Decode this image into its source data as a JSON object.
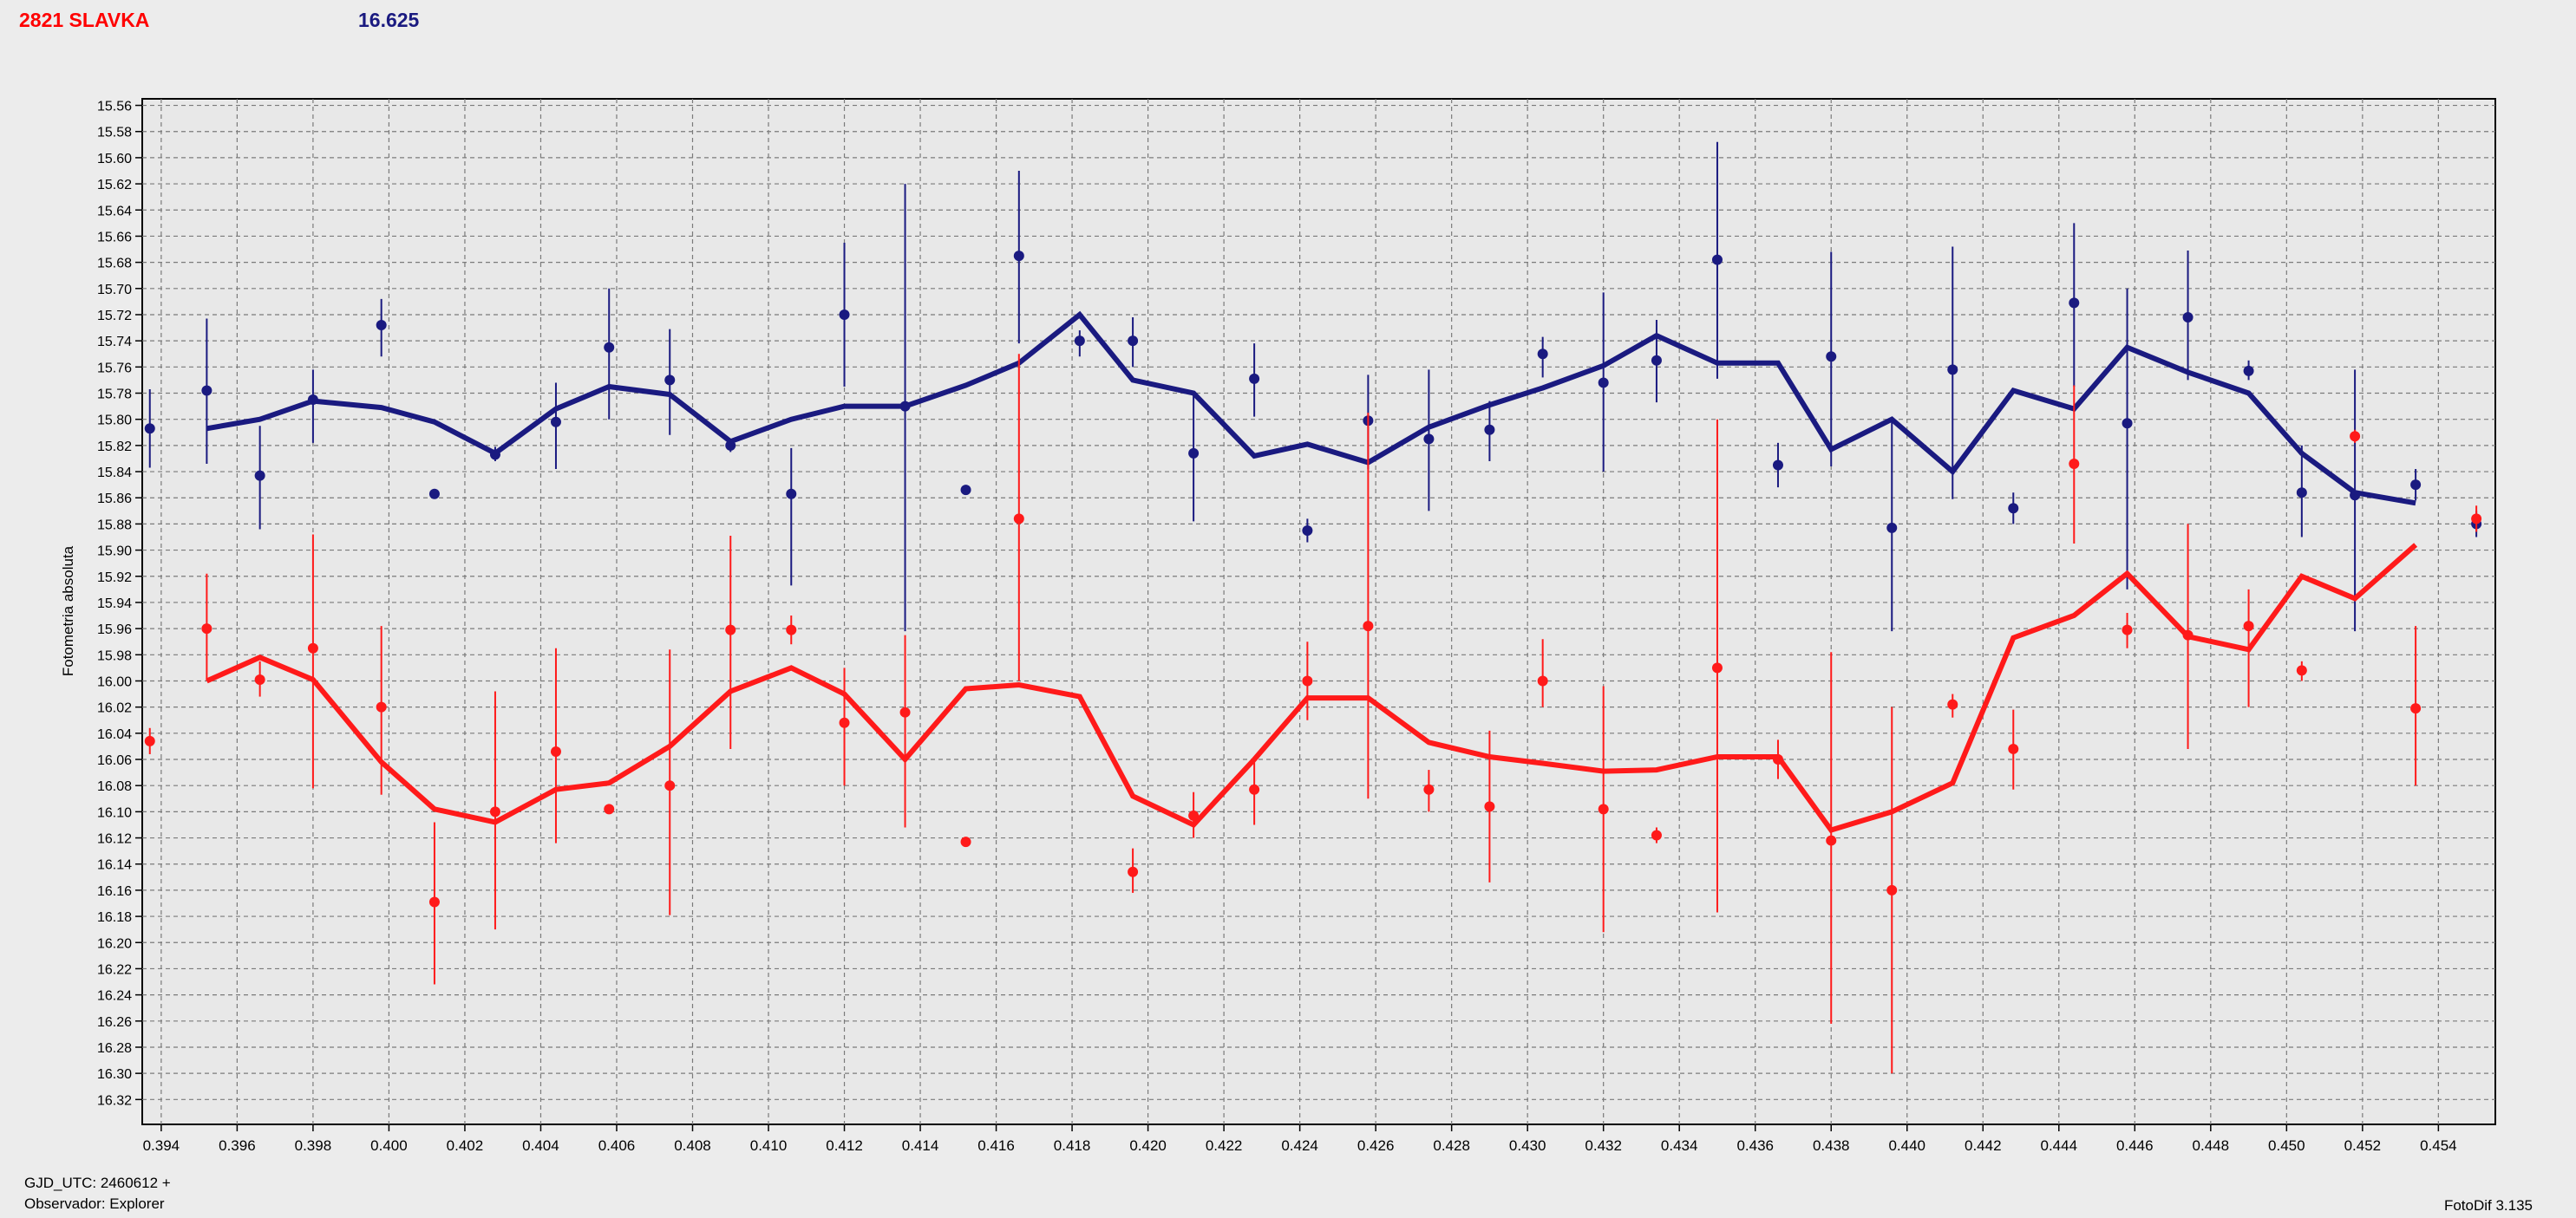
{
  "header": {
    "title": "2821 SLAVKA",
    "value": "16.625"
  },
  "footer": {
    "gjd": "GJD_UTC: 2460612 +",
    "observer": "Observador: Explorer",
    "version": "FotoDif 3.135"
  },
  "colors": {
    "blue": "#1a1a80",
    "red": "#ff1a1a",
    "plot_bg": "#e8e8e8",
    "grid": "#808080"
  },
  "chart_data": {
    "type": "scatter",
    "ylabel": "Fotometria absoluta",
    "xlim": [
      0.3935,
      0.4555
    ],
    "ylim": [
      15.555,
      16.339
    ],
    "y_inverted": true,
    "grid": true,
    "x_ticks": [
      0.394,
      0.396,
      0.398,
      0.4,
      0.402,
      0.404,
      0.406,
      0.408,
      0.41,
      0.412,
      0.414,
      0.416,
      0.418,
      0.42,
      0.422,
      0.424,
      0.426,
      0.428,
      0.43,
      0.432,
      0.434,
      0.436,
      0.438,
      0.44,
      0.442,
      0.444,
      0.446,
      0.448,
      0.45,
      0.452,
      0.454
    ],
    "x_tick_labels": [
      "0.394",
      "0.396",
      "0.398",
      "0.400",
      "0.402",
      "0.404",
      "0.406",
      "0.408",
      "0.410",
      "0.412",
      "0.414",
      "0.416",
      "0.418",
      "0.420",
      "0.422",
      "0.424",
      "0.426",
      "0.428",
      "0.430",
      "0.432",
      "0.434",
      "0.436",
      "0.438",
      "0.440",
      "0.442",
      "0.444",
      "0.446",
      "0.448",
      "0.450",
      "0.452",
      "0.454"
    ],
    "y_ticks": [
      15.56,
      15.58,
      15.6,
      15.62,
      15.64,
      15.66,
      15.68,
      15.7,
      15.72,
      15.74,
      15.76,
      15.78,
      15.8,
      15.82,
      15.84,
      15.86,
      15.88,
      15.9,
      15.92,
      15.94,
      15.96,
      15.98,
      16.0,
      16.02,
      16.04,
      16.06,
      16.08,
      16.1,
      16.12,
      16.14,
      16.16,
      16.18,
      16.2,
      16.22,
      16.24,
      16.26,
      16.28,
      16.3,
      16.32
    ],
    "y_tick_labels": [
      "15.56",
      "15.58",
      "15.60",
      "15.62",
      "15.64",
      "15.66",
      "15.68",
      "15.70",
      "15.72",
      "15.74",
      "15.76",
      "15.78",
      "15.80",
      "15.82",
      "15.84",
      "15.86",
      "15.88",
      "15.90",
      "15.92",
      "15.94",
      "15.96",
      "15.98",
      "16.00",
      "16.02",
      "16.04",
      "16.06",
      "16.08",
      "16.10",
      "16.12",
      "16.14",
      "16.16",
      "16.18",
      "16.20",
      "16.22",
      "16.24",
      "16.26",
      "16.28",
      "16.30",
      "16.32"
    ],
    "series": [
      {
        "color": "#1a1a80",
        "points": [
          [
            0.3937,
            15.807,
            15.777,
            15.837
          ],
          [
            0.3952,
            15.778,
            15.723,
            15.834
          ],
          [
            0.3966,
            15.843,
            15.805,
            15.884
          ],
          [
            0.398,
            15.785,
            15.762,
            15.818
          ],
          [
            0.3998,
            15.728,
            15.708,
            15.752
          ],
          [
            0.4012,
            15.857,
            15.857,
            15.857
          ],
          [
            0.4028,
            15.827,
            15.821,
            15.832
          ],
          [
            0.4044,
            15.802,
            15.772,
            15.838
          ],
          [
            0.4058,
            15.745,
            15.7,
            15.8
          ],
          [
            0.4074,
            15.77,
            15.731,
            15.812
          ],
          [
            0.409,
            15.82,
            15.815,
            15.825
          ],
          [
            0.4106,
            15.857,
            15.822,
            15.927
          ],
          [
            0.412,
            15.72,
            15.665,
            15.775
          ],
          [
            0.4136,
            15.79,
            15.62,
            15.962
          ],
          [
            0.4152,
            15.854,
            15.854,
            15.854
          ],
          [
            0.4166,
            15.675,
            15.61,
            15.742
          ],
          [
            0.4182,
            15.74,
            15.732,
            15.752
          ],
          [
            0.4196,
            15.74,
            15.722,
            15.76
          ],
          [
            0.4212,
            15.826,
            15.782,
            15.878
          ],
          [
            0.4228,
            15.769,
            15.742,
            15.798
          ],
          [
            0.4242,
            15.885,
            15.876,
            15.894
          ],
          [
            0.4258,
            15.801,
            15.766,
            15.838
          ],
          [
            0.4274,
            15.815,
            15.762,
            15.87
          ],
          [
            0.429,
            15.808,
            15.786,
            15.832
          ],
          [
            0.4304,
            15.75,
            15.737,
            15.768
          ],
          [
            0.432,
            15.772,
            15.703,
            15.84
          ],
          [
            0.4334,
            15.755,
            15.724,
            15.787
          ],
          [
            0.435,
            15.678,
            15.588,
            15.769
          ],
          [
            0.4366,
            15.835,
            15.818,
            15.852
          ],
          [
            0.438,
            15.752,
            15.672,
            15.836
          ],
          [
            0.4396,
            15.883,
            15.8,
            15.962
          ],
          [
            0.4412,
            15.762,
            15.668,
            15.861
          ],
          [
            0.4428,
            15.868,
            15.856,
            15.88
          ],
          [
            0.4444,
            15.711,
            15.65,
            15.775
          ],
          [
            0.4458,
            15.803,
            15.7,
            15.93
          ],
          [
            0.4474,
            15.722,
            15.671,
            15.77
          ],
          [
            0.449,
            15.763,
            15.755,
            15.77
          ],
          [
            0.4504,
            15.856,
            15.82,
            15.89
          ],
          [
            0.4518,
            15.858,
            15.762,
            15.962
          ],
          [
            0.4534,
            15.85,
            15.838,
            15.862
          ],
          [
            0.455,
            15.88,
            15.87,
            15.89
          ]
        ],
        "line": [
          [
            0.3952,
            15.807
          ],
          [
            0.3966,
            15.8
          ],
          [
            0.398,
            15.786
          ],
          [
            0.3998,
            15.791
          ],
          [
            0.4012,
            15.802
          ],
          [
            0.4028,
            15.826
          ],
          [
            0.4044,
            15.792
          ],
          [
            0.4058,
            15.775
          ],
          [
            0.4074,
            15.781
          ],
          [
            0.409,
            15.817
          ],
          [
            0.4106,
            15.8
          ],
          [
            0.412,
            15.79
          ],
          [
            0.4136,
            15.79
          ],
          [
            0.4152,
            15.774
          ],
          [
            0.4166,
            15.757
          ],
          [
            0.4182,
            15.72
          ],
          [
            0.4196,
            15.77
          ],
          [
            0.4212,
            15.78
          ],
          [
            0.4228,
            15.828
          ],
          [
            0.4242,
            15.819
          ],
          [
            0.4258,
            15.833
          ],
          [
            0.4274,
            15.806
          ],
          [
            0.429,
            15.789
          ],
          [
            0.4304,
            15.776
          ],
          [
            0.432,
            15.759
          ],
          [
            0.4334,
            15.736
          ],
          [
            0.435,
            15.757
          ],
          [
            0.4366,
            15.757
          ],
          [
            0.438,
            15.823
          ],
          [
            0.4396,
            15.8
          ],
          [
            0.4412,
            15.84
          ],
          [
            0.4428,
            15.778
          ],
          [
            0.4444,
            15.792
          ],
          [
            0.4458,
            15.745
          ],
          [
            0.4474,
            15.764
          ],
          [
            0.449,
            15.78
          ],
          [
            0.4504,
            15.826
          ],
          [
            0.4518,
            15.856
          ],
          [
            0.4534,
            15.864
          ]
        ]
      },
      {
        "color": "#ff1a1a",
        "points": [
          [
            0.3937,
            16.046,
            16.036,
            16.056
          ],
          [
            0.3952,
            15.96,
            15.918,
            16.0
          ],
          [
            0.3966,
            15.999,
            15.985,
            16.012
          ],
          [
            0.398,
            15.975,
            15.888,
            16.082
          ],
          [
            0.3998,
            16.02,
            15.958,
            16.087
          ],
          [
            0.4012,
            16.169,
            16.108,
            16.232
          ],
          [
            0.4028,
            16.1,
            16.008,
            16.19
          ],
          [
            0.4044,
            16.054,
            15.975,
            16.124
          ],
          [
            0.4058,
            16.098,
            16.098,
            16.098
          ],
          [
            0.4074,
            16.08,
            15.976,
            16.179
          ],
          [
            0.409,
            15.961,
            15.889,
            16.052
          ],
          [
            0.4106,
            15.961,
            15.95,
            15.972
          ],
          [
            0.412,
            16.032,
            15.99,
            16.08
          ],
          [
            0.4136,
            16.024,
            15.965,
            16.112
          ],
          [
            0.4152,
            16.123,
            16.123,
            16.123
          ],
          [
            0.4166,
            15.876,
            15.75,
            16.0
          ],
          [
            0.4196,
            16.146,
            16.128,
            16.162
          ],
          [
            0.4212,
            16.103,
            16.085,
            16.12
          ],
          [
            0.4228,
            16.083,
            16.058,
            16.11
          ],
          [
            0.4242,
            16.0,
            15.97,
            16.03
          ],
          [
            0.4258,
            15.958,
            15.795,
            16.09
          ],
          [
            0.4274,
            16.083,
            16.068,
            16.1
          ],
          [
            0.429,
            16.096,
            16.038,
            16.154
          ],
          [
            0.4304,
            16.0,
            15.968,
            16.02
          ],
          [
            0.432,
            16.098,
            16.004,
            16.192
          ],
          [
            0.4334,
            16.118,
            16.112,
            16.124
          ],
          [
            0.435,
            15.99,
            15.8,
            16.177
          ],
          [
            0.4366,
            16.06,
            16.045,
            16.075
          ],
          [
            0.438,
            16.122,
            15.978,
            16.262
          ],
          [
            0.4396,
            16.16,
            16.02,
            16.3
          ],
          [
            0.4412,
            16.018,
            16.01,
            16.028
          ],
          [
            0.4428,
            16.052,
            16.022,
            16.083
          ],
          [
            0.4444,
            15.834,
            15.774,
            15.895
          ],
          [
            0.4458,
            15.961,
            15.948,
            15.975
          ],
          [
            0.4474,
            15.965,
            15.88,
            16.052
          ],
          [
            0.449,
            15.958,
            15.93,
            16.02
          ],
          [
            0.4504,
            15.992,
            15.985,
            16.0
          ],
          [
            0.4518,
            15.813,
            15.808,
            15.818
          ],
          [
            0.4534,
            16.021,
            15.958,
            16.08
          ],
          [
            0.455,
            15.876,
            15.866,
            15.886
          ]
        ],
        "line": [
          [
            0.3952,
            16.0
          ],
          [
            0.3966,
            15.982
          ],
          [
            0.398,
            15.999
          ],
          [
            0.3998,
            16.062
          ],
          [
            0.4012,
            16.098
          ],
          [
            0.4028,
            16.108
          ],
          [
            0.4044,
            16.083
          ],
          [
            0.4058,
            16.078
          ],
          [
            0.4074,
            16.05
          ],
          [
            0.409,
            16.008
          ],
          [
            0.4106,
            15.99
          ],
          [
            0.412,
            16.01
          ],
          [
            0.4136,
            16.06
          ],
          [
            0.4152,
            16.006
          ],
          [
            0.4166,
            16.003
          ],
          [
            0.4182,
            16.012
          ],
          [
            0.4196,
            16.088
          ],
          [
            0.4212,
            16.11
          ],
          [
            0.4228,
            16.06
          ],
          [
            0.4242,
            16.013
          ],
          [
            0.4258,
            16.013
          ],
          [
            0.4274,
            16.047
          ],
          [
            0.429,
            16.058
          ],
          [
            0.4304,
            16.063
          ],
          [
            0.432,
            16.069
          ],
          [
            0.4334,
            16.068
          ],
          [
            0.435,
            16.058
          ],
          [
            0.4366,
            16.058
          ],
          [
            0.438,
            16.114
          ],
          [
            0.4396,
            16.1
          ],
          [
            0.4412,
            16.078
          ],
          [
            0.4428,
            15.967
          ],
          [
            0.4444,
            15.95
          ],
          [
            0.4458,
            15.918
          ],
          [
            0.4474,
            15.966
          ],
          [
            0.449,
            15.976
          ],
          [
            0.4504,
            15.92
          ],
          [
            0.4518,
            15.937
          ],
          [
            0.4534,
            15.896
          ]
        ]
      }
    ]
  }
}
